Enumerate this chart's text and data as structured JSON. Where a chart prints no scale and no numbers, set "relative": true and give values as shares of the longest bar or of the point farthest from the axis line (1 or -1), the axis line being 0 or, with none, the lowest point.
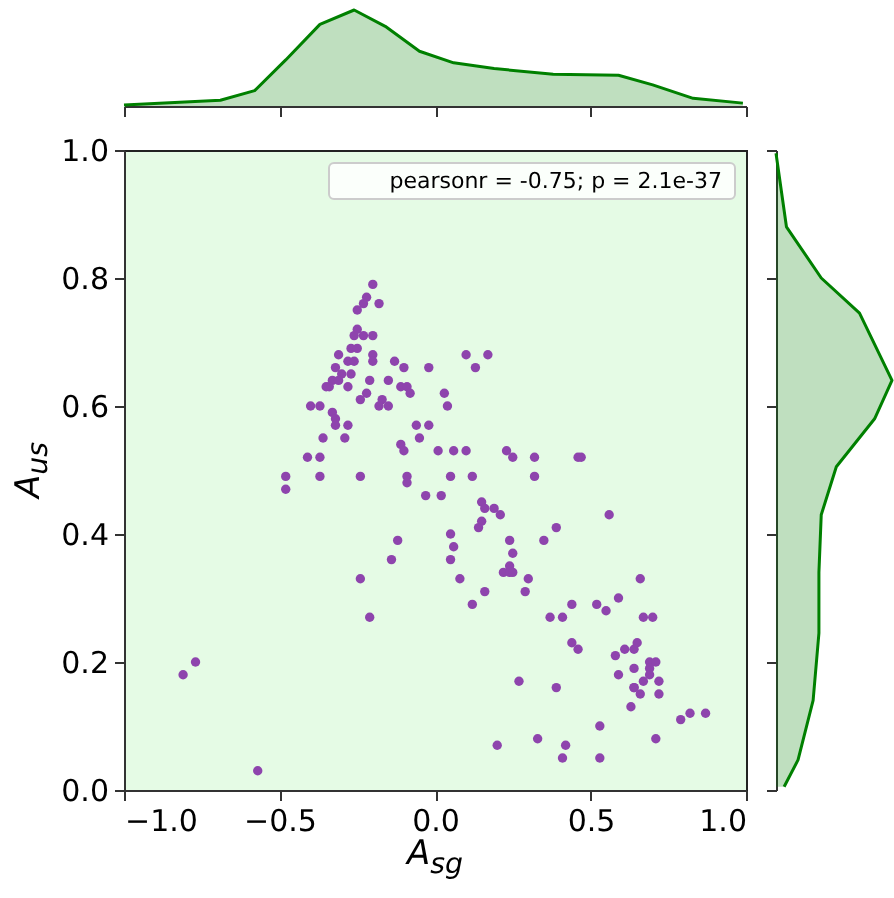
{
  "chart_data": [
    {
      "type": "area",
      "x": [
        -1,
        -0.69,
        -0.58,
        -0.48,
        -0.37,
        -0.26,
        -0.16,
        -0.05,
        0.06,
        0.19,
        0.38,
        0.59,
        0.7,
        0.83,
        0.99
      ],
      "values": [
        0.01,
        0.06,
        0.16,
        0.48,
        0.85,
        1,
        0.83,
        0.57,
        0.45,
        0.39,
        0.33,
        0.32,
        0.22,
        0.08,
        0.03
      ],
      "color": "#008000",
      "relative": true,
      "xlim": [
        -1,
        1
      ],
      "xticks": [
        -1,
        -0.5,
        0,
        0.5,
        1
      ],
      "tick_labels": false
    },
    {
      "type": "scatter",
      "xlabel": "A$_{sg}$",
      "ylabel": "A$_{us}$",
      "annotations": [
        "pearsonr = -0.75; p = 2.1e-37"
      ],
      "color": "#8e44ad",
      "marker": "circle",
      "x": [
        -0.2,
        -0.22,
        -0.23,
        -0.25,
        -0.18,
        -0.25,
        -0.26,
        -0.23,
        -0.2,
        -0.27,
        -0.25,
        -0.2,
        -0.31,
        -0.28,
        -0.26,
        -0.32,
        -0.3,
        -0.27,
        -0.2,
        -0.13,
        -0.1,
        -0.02,
        -0.33,
        -0.31,
        -0.34,
        -0.28,
        -0.35,
        -0.21,
        -0.15,
        -0.11,
        -0.09,
        -0.22,
        -0.24,
        -0.17,
        -0.18,
        -0.15,
        -0.08,
        -0.4,
        -0.37,
        -0.33,
        -0.32,
        -0.36,
        -0.32,
        -0.28,
        -0.29,
        -0.11,
        -0.1,
        -0.06,
        -0.02,
        -0.05,
        0.01,
        -0.41,
        -0.37,
        -0.48,
        -0.48,
        -0.37,
        -0.24,
        -0.09,
        -0.09,
        0.1,
        0.17,
        0.13,
        0.03,
        0.04,
        0.06,
        0.1,
        0.23,
        0.25,
        0.32,
        0.46,
        0.47,
        0.05,
        0.12,
        0.32,
        -0.03,
        -0.12,
        -0.14,
        -0.24,
        -0.21,
        -0.81,
        -0.77,
        -0.57,
        0.02,
        0.15,
        0.16,
        0.19,
        0.21,
        0.15,
        0.14,
        0.56,
        0.05,
        0.06,
        0.39,
        0.35,
        0.24,
        0.05,
        0.25,
        0.24,
        0.22,
        0.24,
        0.25,
        0.08,
        0.3,
        0.29,
        0.16,
        0.12,
        0.66,
        0.44,
        0.52,
        0.55,
        0.59,
        0.37,
        0.41,
        0.67,
        0.7,
        0.44,
        0.46,
        0.65,
        0.64,
        0.61,
        0.58,
        0.69,
        0.71,
        0.64,
        0.69,
        0.59,
        0.69,
        0.72,
        0.67,
        0.64,
        0.64,
        0.66,
        0.72,
        0.27,
        0.39,
        0.63,
        0.79,
        0.82,
        0.87,
        0.53,
        0.71,
        0.33,
        0.2,
        0.42,
        0.41,
        0.53
      ],
      "values": [
        0.79,
        0.77,
        0.76,
        0.75,
        0.76,
        0.72,
        0.71,
        0.71,
        0.71,
        0.69,
        0.69,
        0.68,
        0.68,
        0.67,
        0.67,
        0.66,
        0.65,
        0.65,
        0.67,
        0.67,
        0.66,
        0.66,
        0.64,
        0.64,
        0.63,
        0.63,
        0.63,
        0.64,
        0.64,
        0.63,
        0.63,
        0.62,
        0.61,
        0.61,
        0.6,
        0.6,
        0.62,
        0.6,
        0.6,
        0.59,
        0.58,
        0.55,
        0.57,
        0.57,
        0.55,
        0.54,
        0.53,
        0.57,
        0.57,
        0.55,
        0.53,
        0.52,
        0.52,
        0.49,
        0.47,
        0.49,
        0.49,
        0.49,
        0.48,
        0.68,
        0.68,
        0.66,
        0.62,
        0.6,
        0.53,
        0.53,
        0.53,
        0.52,
        0.52,
        0.52,
        0.52,
        0.49,
        0.49,
        0.49,
        0.46,
        0.39,
        0.36,
        0.33,
        0.27,
        0.18,
        0.2,
        0.03,
        0.46,
        0.45,
        0.44,
        0.44,
        0.43,
        0.42,
        0.41,
        0.43,
        0.4,
        0.38,
        0.41,
        0.39,
        0.39,
        0.36,
        0.37,
        0.35,
        0.34,
        0.34,
        0.34,
        0.33,
        0.33,
        0.31,
        0.31,
        0.29,
        0.33,
        0.29,
        0.29,
        0.28,
        0.3,
        0.27,
        0.27,
        0.27,
        0.27,
        0.23,
        0.22,
        0.23,
        0.22,
        0.22,
        0.21,
        0.2,
        0.2,
        0.19,
        0.19,
        0.18,
        0.18,
        0.17,
        0.17,
        0.16,
        0.16,
        0.15,
        0.15,
        0.17,
        0.16,
        0.13,
        0.11,
        0.12,
        0.12,
        0.1,
        0.08,
        0.08,
        0.07,
        0.07,
        0.05,
        0.05
      ],
      "xlim": [
        -1,
        1
      ],
      "xticks": [
        {
          "value": -1,
          "label": "−1.0"
        },
        {
          "value": -0.5,
          "label": "−0.5"
        },
        {
          "value": 0,
          "label": "0.0"
        },
        {
          "value": 0.5,
          "label": "0.5"
        },
        {
          "value": 1,
          "label": "1.0"
        }
      ],
      "ylim": [
        0,
        1
      ],
      "yticks": [
        {
          "value": 0,
          "label": "0.0"
        },
        {
          "value": 0.2,
          "label": "0.2"
        },
        {
          "value": 0.4,
          "label": "0.4"
        },
        {
          "value": 0.6,
          "label": "0.6"
        },
        {
          "value": 0.8,
          "label": "0.8"
        },
        {
          "value": 1,
          "label": "1.0"
        }
      ]
    },
    {
      "type": "area",
      "orientation": "horizontal",
      "x": [
        0.995,
        0.88,
        0.8,
        0.745,
        0.64,
        0.58,
        0.505,
        0.43,
        0.34,
        0.245,
        0.14,
        0.047,
        0.005
      ],
      "values": [
        0,
        0.09,
        0.39,
        0.72,
        1,
        0.85,
        0.52,
        0.39,
        0.37,
        0.37,
        0.32,
        0.19,
        0.07
      ],
      "color": "#008000",
      "relative": true,
      "ylim": [
        0,
        1
      ],
      "yticks": [
        0,
        0.2,
        0.4,
        0.6,
        0.8,
        1
      ],
      "tick_labels": false
    }
  ]
}
